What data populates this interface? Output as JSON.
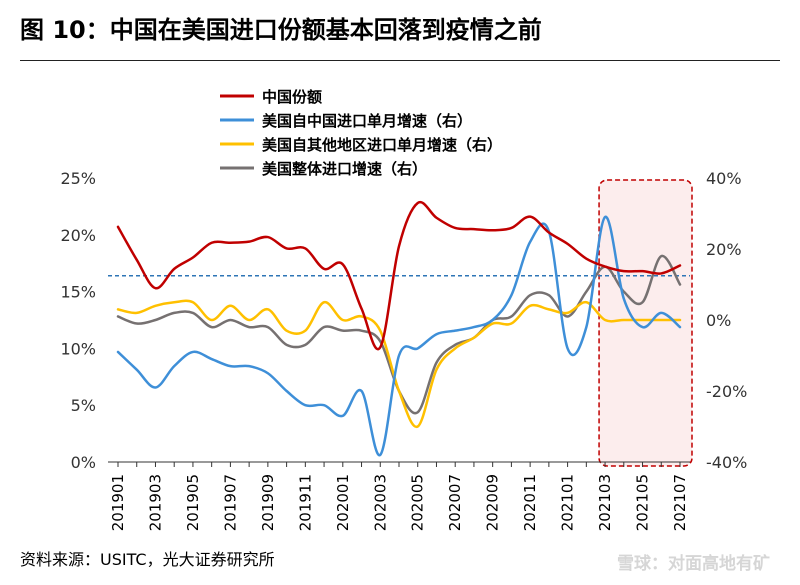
{
  "title": "图 10：中国在美国进口份额基本回落到疫情之前",
  "source": "资料来源：USITC，光大证券研究所",
  "watermark": "雪球：对面高地有矿",
  "chart_data": {
    "type": "line",
    "x": [
      "201901",
      "201902",
      "201903",
      "201904",
      "201905",
      "201906",
      "201907",
      "201908",
      "201909",
      "201910",
      "201911",
      "201912",
      "202001",
      "202002",
      "202003",
      "202004",
      "202005",
      "202006",
      "202007",
      "202008",
      "202009",
      "202010",
      "202011",
      "202012",
      "202101",
      "202102",
      "202103",
      "202104",
      "202105",
      "202106",
      "202107"
    ],
    "x_tick_labels": [
      "201901",
      "201903",
      "201905",
      "201907",
      "201909",
      "201911",
      "202001",
      "202003",
      "202005",
      "202007",
      "202009",
      "202011",
      "202101",
      "202103",
      "202105",
      "202107"
    ],
    "left_axis": {
      "ylim": [
        0,
        25
      ],
      "ticks": [
        "0%",
        "5%",
        "10%",
        "15%",
        "20%",
        "25%"
      ]
    },
    "right_axis": {
      "ylim": [
        -40,
        40
      ],
      "ticks": [
        "-40%",
        "-20%",
        "0%",
        "20%",
        "40%"
      ]
    },
    "series": [
      {
        "name": "中国份额",
        "color": "#C00000",
        "axis": "left",
        "values": [
          20.7,
          17.8,
          15.3,
          17.0,
          18.0,
          19.3,
          19.3,
          19.4,
          19.8,
          18.8,
          18.8,
          17.0,
          17.4,
          13.5,
          10.1,
          19.0,
          22.8,
          21.5,
          20.6,
          20.5,
          20.4,
          20.6,
          21.6,
          20.2,
          19.2,
          17.9,
          17.2,
          16.8,
          16.8,
          16.6,
          17.3
        ]
      },
      {
        "name": "美国自中国进口单月增速（右）",
        "color": "#3E8FD8",
        "axis": "right",
        "values": [
          -9,
          -14,
          -19,
          -13,
          -9,
          -11,
          -13,
          -13,
          -15,
          -20,
          -24,
          -24,
          -27,
          -20,
          -38,
          -10,
          -8,
          -4,
          -3,
          -2,
          0,
          7,
          22,
          25,
          -8,
          -2,
          29,
          6,
          -2,
          2,
          -2
        ]
      },
      {
        "name": "美国自其他地区进口单月增速（右）",
        "color": "#FFC000",
        "axis": "right",
        "values": [
          3,
          2,
          4,
          5,
          5,
          0,
          4,
          0,
          3,
          -3,
          -3,
          5,
          0,
          1,
          -3,
          -20,
          -30,
          -14,
          -8,
          -5,
          -1,
          -1,
          4,
          3,
          2,
          5,
          0,
          0,
          0,
          0,
          0
        ]
      },
      {
        "name": "美国整体进口增速（右）",
        "color": "#767171",
        "axis": "right",
        "values": [
          1,
          -1,
          0,
          2,
          2,
          -2,
          0,
          -2,
          -2,
          -7,
          -7,
          -2,
          -3,
          -3,
          -6,
          -20,
          -26,
          -12,
          -7,
          -5,
          0,
          1,
          7,
          7,
          1,
          8,
          15,
          8,
          5,
          18,
          10
        ]
      }
    ],
    "reference_line": {
      "value": 16.4,
      "axis": "left",
      "style": "dashed",
      "color": "#2E75B6"
    },
    "highlight_range": {
      "from": "202103",
      "to": "202107"
    },
    "legend_position": "top-left"
  }
}
